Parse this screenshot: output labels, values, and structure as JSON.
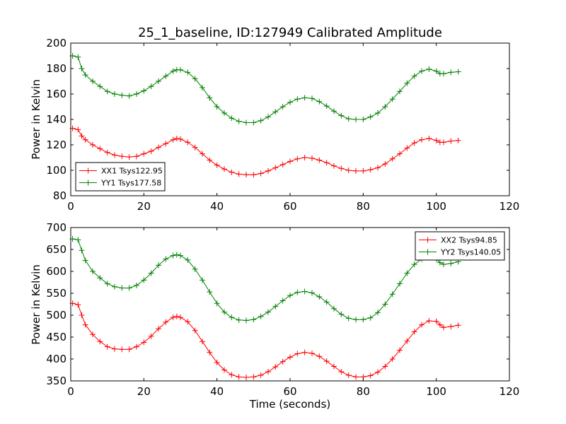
{
  "chart_data": [
    {
      "type": "line",
      "title": "25_1_baseline, ID:127949 Calibrated Amplitude",
      "xlabel": "",
      "ylabel": "Power in Kelvin",
      "xlim": [
        0,
        120
      ],
      "ylim": [
        80,
        200
      ],
      "xticks": [
        0,
        20,
        40,
        60,
        80,
        100,
        120
      ],
      "yticks": [
        80,
        100,
        120,
        140,
        160,
        180,
        200
      ],
      "xtick_labels": [
        "0",
        "20",
        "40",
        "60",
        "80",
        "100",
        "120"
      ],
      "ytick_labels": [
        "80",
        "100",
        "120",
        "140",
        "160",
        "180",
        "200"
      ],
      "grid": false,
      "legend_position": "lower-left",
      "marker": "plus",
      "series": [
        {
          "name": "XX1 Tsys122.95",
          "color": "#ff0000",
          "x": [
            0.5,
            2,
            3,
            4,
            6,
            8,
            10,
            12,
            14,
            16,
            18,
            20,
            22,
            24,
            26,
            28,
            29,
            30,
            32,
            34,
            36,
            38,
            40,
            42,
            44,
            46,
            48,
            50,
            52,
            54,
            56,
            58,
            60,
            62,
            64,
            66,
            68,
            70,
            72,
            74,
            76,
            78,
            80,
            82,
            84,
            86,
            88,
            90,
            92,
            94,
            96,
            98,
            100,
            101,
            102,
            104,
            106
          ],
          "y": [
            133,
            132,
            127,
            124,
            120,
            117,
            114,
            112,
            111,
            110.5,
            111,
            113,
            115,
            118,
            121,
            124,
            125,
            124.5,
            122,
            118,
            113,
            108,
            104,
            101,
            98.5,
            97,
            96.5,
            96.5,
            97.5,
            99.5,
            102,
            104.5,
            107,
            109,
            110,
            109.5,
            108,
            106,
            103.5,
            101.5,
            100,
            99.5,
            99.5,
            100.5,
            102,
            105,
            109,
            113,
            117.5,
            121.5,
            124,
            125,
            123.5,
            122,
            122,
            123,
            123.5
          ]
        },
        {
          "name": "YY1 Tsys177.58",
          "color": "#008000",
          "x": [
            0.5,
            2,
            3,
            4,
            6,
            8,
            10,
            12,
            14,
            16,
            18,
            20,
            22,
            24,
            26,
            28,
            29,
            30,
            32,
            34,
            36,
            38,
            40,
            42,
            44,
            46,
            48,
            50,
            52,
            54,
            56,
            58,
            60,
            62,
            64,
            66,
            68,
            70,
            72,
            74,
            76,
            78,
            80,
            82,
            84,
            86,
            88,
            90,
            92,
            94,
            96,
            98,
            100,
            101,
            102,
            104,
            106
          ],
          "y": [
            190,
            189,
            180,
            175,
            170,
            166,
            162,
            160,
            159,
            158.5,
            160,
            162.5,
            166,
            170,
            174,
            178,
            179,
            179,
            177,
            172,
            165,
            157,
            150,
            145,
            141,
            138.5,
            137.5,
            137.5,
            139,
            142,
            146,
            150,
            153.5,
            156,
            157,
            156.5,
            154,
            150.5,
            146.5,
            143,
            140.5,
            140,
            140,
            142,
            145,
            150,
            156,
            162,
            168.5,
            174,
            178,
            179.5,
            178,
            176,
            176,
            177,
            177.5
          ]
        }
      ]
    },
    {
      "type": "line",
      "title": "",
      "xlabel": "Time (seconds)",
      "ylabel": "Power in Kelvin",
      "xlim": [
        0,
        120
      ],
      "ylim": [
        350,
        700
      ],
      "xticks": [
        0,
        20,
        40,
        60,
        80,
        100,
        120
      ],
      "yticks": [
        350,
        400,
        450,
        500,
        550,
        600,
        650,
        700
      ],
      "xtick_labels": [
        "0",
        "20",
        "40",
        "60",
        "80",
        "100",
        "120"
      ],
      "ytick_labels": [
        "350",
        "400",
        "450",
        "500",
        "550",
        "600",
        "650",
        "700"
      ],
      "grid": false,
      "legend_position": "upper-right",
      "marker": "plus",
      "series": [
        {
          "name": "XX2 Tsys94.85",
          "color": "#ff0000",
          "x": [
            0.5,
            2,
            3,
            4,
            6,
            8,
            10,
            12,
            14,
            16,
            18,
            20,
            22,
            24,
            26,
            28,
            29,
            30,
            32,
            34,
            36,
            38,
            40,
            42,
            44,
            46,
            48,
            50,
            52,
            54,
            56,
            58,
            60,
            62,
            64,
            66,
            68,
            70,
            72,
            74,
            76,
            78,
            80,
            82,
            84,
            86,
            88,
            90,
            92,
            94,
            96,
            98,
            100,
            101,
            102,
            104,
            106
          ],
          "y": [
            527,
            524,
            500,
            478,
            456,
            440,
            428,
            423,
            422,
            422,
            428,
            438,
            452,
            469,
            484,
            495,
            497,
            495,
            485,
            465,
            440,
            415,
            392,
            375,
            364,
            359,
            358,
            359,
            363,
            371,
            382,
            394,
            404,
            412,
            415,
            413,
            406,
            395,
            383,
            371,
            363,
            359,
            359,
            362,
            370,
            383,
            400,
            420,
            441,
            462,
            478,
            487,
            486,
            478,
            472,
            474,
            477
          ]
        },
        {
          "name": "YY2 Tsys140.05",
          "color": "#008000",
          "x": [
            0.5,
            2,
            3,
            4,
            6,
            8,
            10,
            12,
            14,
            16,
            18,
            20,
            22,
            24,
            26,
            28,
            29,
            30,
            32,
            34,
            36,
            38,
            40,
            42,
            44,
            46,
            48,
            50,
            52,
            54,
            56,
            58,
            60,
            62,
            64,
            66,
            68,
            70,
            72,
            74,
            76,
            78,
            80,
            82,
            84,
            86,
            88,
            90,
            92,
            94,
            96,
            98,
            100,
            101,
            102,
            104,
            106
          ],
          "y": [
            674,
            672,
            648,
            625,
            600,
            585,
            572,
            565,
            562,
            562,
            568,
            580,
            596,
            614,
            628,
            636,
            638,
            636,
            626,
            605,
            580,
            553,
            527,
            507,
            495,
            489,
            488,
            490,
            497,
            507,
            520,
            533,
            545,
            552,
            554,
            551,
            542,
            530,
            515,
            502,
            493,
            490,
            490,
            494,
            506,
            525,
            548,
            572,
            596,
            616,
            628,
            632,
            628,
            620,
            616,
            618,
            622
          ]
        }
      ]
    }
  ]
}
